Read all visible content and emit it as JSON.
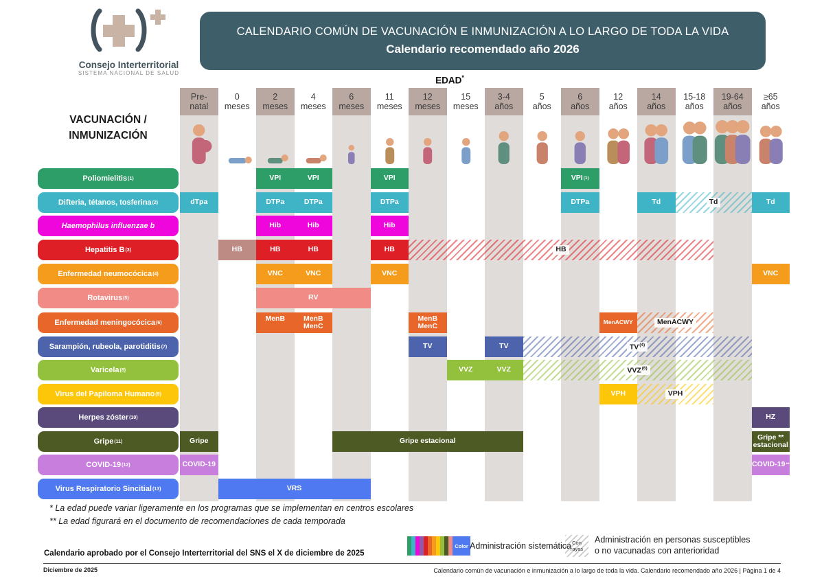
{
  "header": {
    "logo_org": "Consejo Interterritorial",
    "logo_sub": "SISTEMA NACIONAL DE SALUD",
    "title_line1": "CALENDARIO COMÚN DE VACUNACIÓN E INMUNIZACIÓN A LO LARGO DE TODA LA VIDA",
    "title_line2": "Calendario recomendado año 2026"
  },
  "axis": {
    "edad_label": "EDAD",
    "edad_sup": "*",
    "left_label_line1": "VACUNACIÓN /",
    "left_label_line2": "INMUNIZACIÓN"
  },
  "chart_data": {
    "type": "table",
    "columns": [
      {
        "label": "Pre-\nnatal",
        "shaded": true,
        "icon": "pregnant-woman-icon"
      },
      {
        "label": "0\nmeses",
        "shaded": false,
        "icon": "newborn-icon"
      },
      {
        "label": "2\nmeses",
        "shaded": true,
        "icon": "crawling-baby-icon"
      },
      {
        "label": "4\nmeses",
        "shaded": false,
        "icon": "crawling-baby-icon"
      },
      {
        "label": "6\nmeses",
        "shaded": true,
        "icon": "sitting-baby-icon"
      },
      {
        "label": "11\nmeses",
        "shaded": false,
        "icon": "toddler-icon"
      },
      {
        "label": "12\nmeses",
        "shaded": true,
        "icon": "toddler-icon"
      },
      {
        "label": "15\nmeses",
        "shaded": false,
        "icon": "toddler-icon"
      },
      {
        "label": "3-4\naños",
        "shaded": true,
        "icon": "child-icon"
      },
      {
        "label": "5\naños",
        "shaded": false,
        "icon": "child-icon"
      },
      {
        "label": "6\naños",
        "shaded": true,
        "icon": "child-icon"
      },
      {
        "label": "12\naños",
        "shaded": false,
        "icon": "preteens-icon"
      },
      {
        "label": "14\naños",
        "shaded": true,
        "icon": "teens-icon"
      },
      {
        "label": "15-18\naños",
        "shaded": false,
        "icon": "young-adults-icon"
      },
      {
        "label": "19-64\naños",
        "shaded": true,
        "icon": "adults-icon"
      },
      {
        "label": "≥65\naños",
        "shaded": false,
        "icon": "elderly-couple-icon"
      }
    ],
    "rows": [
      {
        "label": "Poliomielitis",
        "sup": "(1)",
        "color": "#2D9E68",
        "cells": [
          {
            "type": "solid",
            "start": 2,
            "end": 3,
            "labels": [
              "VPI",
              "VPI"
            ]
          },
          {
            "type": "solid",
            "start": 5,
            "end": 5,
            "label": "VPI"
          },
          {
            "type": "solid",
            "start": 10,
            "end": 10,
            "label": "VPI",
            "label_sup": "(1)"
          }
        ]
      },
      {
        "label": "Difteria, tétanos, tosferina",
        "sup": "(2)",
        "color": "#3FB4C6",
        "cells": [
          {
            "type": "solid",
            "start": 0,
            "end": 0,
            "label": "dTpa"
          },
          {
            "type": "solid",
            "start": 2,
            "end": 3,
            "labels": [
              "DTPa",
              "DTPa"
            ]
          },
          {
            "type": "solid",
            "start": 5,
            "end": 5,
            "label": "DTPa"
          },
          {
            "type": "solid",
            "start": 10,
            "end": 10,
            "label": "DTPa"
          },
          {
            "type": "solid",
            "start": 12,
            "end": 12,
            "label": "Td"
          },
          {
            "type": "hatch",
            "start": 13,
            "end": 14,
            "label": "Td"
          },
          {
            "type": "solid",
            "start": 15,
            "end": 15,
            "label": "Td"
          }
        ]
      },
      {
        "label": "Haemophilus influenzae b",
        "sup": "",
        "italic": true,
        "color": "#EF06DC",
        "cells": [
          {
            "type": "solid",
            "start": 2,
            "end": 3,
            "labels": [
              "Hib",
              "Hib"
            ]
          },
          {
            "type": "solid",
            "start": 5,
            "end": 5,
            "label": "Hib"
          }
        ]
      },
      {
        "label": "Hepatitis B",
        "sup": "(3)",
        "color": "#DF1F26",
        "cells": [
          {
            "type": "solid",
            "start": 1,
            "end": 1,
            "label": "HB",
            "color": "#BE8A84"
          },
          {
            "type": "solid",
            "start": 2,
            "end": 3,
            "labels": [
              "HB",
              "HB"
            ]
          },
          {
            "type": "solid",
            "start": 5,
            "end": 5,
            "label": "HB"
          },
          {
            "type": "hatch",
            "start": 6,
            "end": 13,
            "label": "HB"
          }
        ]
      },
      {
        "label": "Enfermedad neumocócica",
        "sup": "(4)",
        "color": "#F59C1C",
        "cells": [
          {
            "type": "solid",
            "start": 2,
            "end": 3,
            "labels": [
              "VNC",
              "VNC"
            ]
          },
          {
            "type": "solid",
            "start": 5,
            "end": 5,
            "label": "VNC"
          },
          {
            "type": "solid",
            "start": 15,
            "end": 15,
            "label": "VNC"
          }
        ]
      },
      {
        "label": "Rotavirus",
        "sup": "(5)",
        "color": "#F08B85",
        "cells": [
          {
            "type": "solid",
            "start": 2,
            "end": 4,
            "label": "RV"
          }
        ]
      },
      {
        "label": "Enfermedad meningocócica",
        "sup": "(6)",
        "color": "#E8662A",
        "cells": [
          {
            "type": "solid",
            "start": 2,
            "end": 3,
            "labels": [
              "MenB",
              "MenB\nMenC"
            ]
          },
          {
            "type": "solid",
            "start": 6,
            "end": 6,
            "label": "MenB\nMenC"
          },
          {
            "type": "solid",
            "start": 11,
            "end": 11,
            "label": "MenACWY",
            "small": true
          },
          {
            "type": "hatch",
            "start": 12,
            "end": 13,
            "label": "MenACWY"
          }
        ]
      },
      {
        "label": "Sarampión, rubeola, parotiditis",
        "sup": "(7)",
        "color": "#4D64AC",
        "cells": [
          {
            "type": "solid",
            "start": 6,
            "end": 6,
            "label": "TV"
          },
          {
            "type": "solid",
            "start": 8,
            "end": 8,
            "label": "TV"
          },
          {
            "type": "hatch",
            "start": 9,
            "end": 14,
            "label": "TV",
            "label_sup": "(4)"
          }
        ]
      },
      {
        "label": "Varicela",
        "sup": "(8)",
        "color": "#93C13D",
        "cells": [
          {
            "type": "solid",
            "start": 7,
            "end": 8,
            "labels": [
              "VVZ",
              "VVZ"
            ]
          },
          {
            "type": "hatch",
            "start": 9,
            "end": 14,
            "label": "VVZ",
            "label_sup": "(6)"
          }
        ]
      },
      {
        "label": "Virus del Papiloma Humano",
        "sup": "(9)",
        "color": "#FDC608",
        "cells": [
          {
            "type": "solid",
            "start": 11,
            "end": 11,
            "label": "VPH"
          },
          {
            "type": "hatch",
            "start": 12,
            "end": 13,
            "label": "VPH"
          }
        ]
      },
      {
        "label": "Herpes zóster",
        "sup": "(10)",
        "color": "#5A4A7B",
        "cells": [
          {
            "type": "solid",
            "start": 15,
            "end": 15,
            "label": "HZ"
          }
        ]
      },
      {
        "label": "Gripe",
        "sup": "(11)",
        "color": "#4D5A23",
        "cells": [
          {
            "type": "solid",
            "start": 0,
            "end": 0,
            "label": "Gripe"
          },
          {
            "type": "solid",
            "start": 4,
            "end": 8,
            "label": "Gripe estacional"
          },
          {
            "type": "solid",
            "start": 15,
            "end": 15,
            "label": "Gripe **\nestacional"
          }
        ]
      },
      {
        "label": "COVID-19",
        "sup": "(12)",
        "color": "#C77EDC",
        "cells": [
          {
            "type": "solid",
            "start": 0,
            "end": 0,
            "label": "COVID-19"
          },
          {
            "type": "solid",
            "start": 15,
            "end": 15,
            "label": "COVID-19",
            "label_sup": "**"
          }
        ]
      },
      {
        "label": "Virus Respiratorio Sincitial",
        "sup": "(13)",
        "color": "#4E79F0",
        "cells": [
          {
            "type": "solid",
            "start": 1,
            "end": 4,
            "label": "VRS"
          }
        ]
      }
    ]
  },
  "footnotes": {
    "note1": "* La edad puede variar ligeramente en los programas que se implementan en centros escolares",
    "note2": "** La edad figurará en el documento de recomendaciones de cada temporada"
  },
  "legend": {
    "color_box_label": "Color",
    "color_box_color": "#4E79F0",
    "swatch_colors": [
      "#2D9E68",
      "#3FB4C6",
      "#EF06DC",
      "#8E5BA6",
      "#DF1F26",
      "#E8662A",
      "#F59C1C",
      "#FDC608",
      "#93C13D",
      "#4D5A23",
      "#F08B85"
    ],
    "systematic_label": "Administración sistemática",
    "hatch_chip_line1": "Con",
    "hatch_chip_line2": "rayas",
    "susceptible_line1": "Administración en personas susceptibles",
    "susceptible_line2": "o no vacunadas con anterioridad"
  },
  "footer": {
    "approved": "Calendario aprobado por el Consejo Interterritorial del SNS el X de diciembre de 2025",
    "date": "Diciembre de 2025",
    "pagination": "Calendario común de vacunación e inmunización a lo largo de toda la vida. Calendario recomendado año 2026 | Página 1 de 4"
  }
}
